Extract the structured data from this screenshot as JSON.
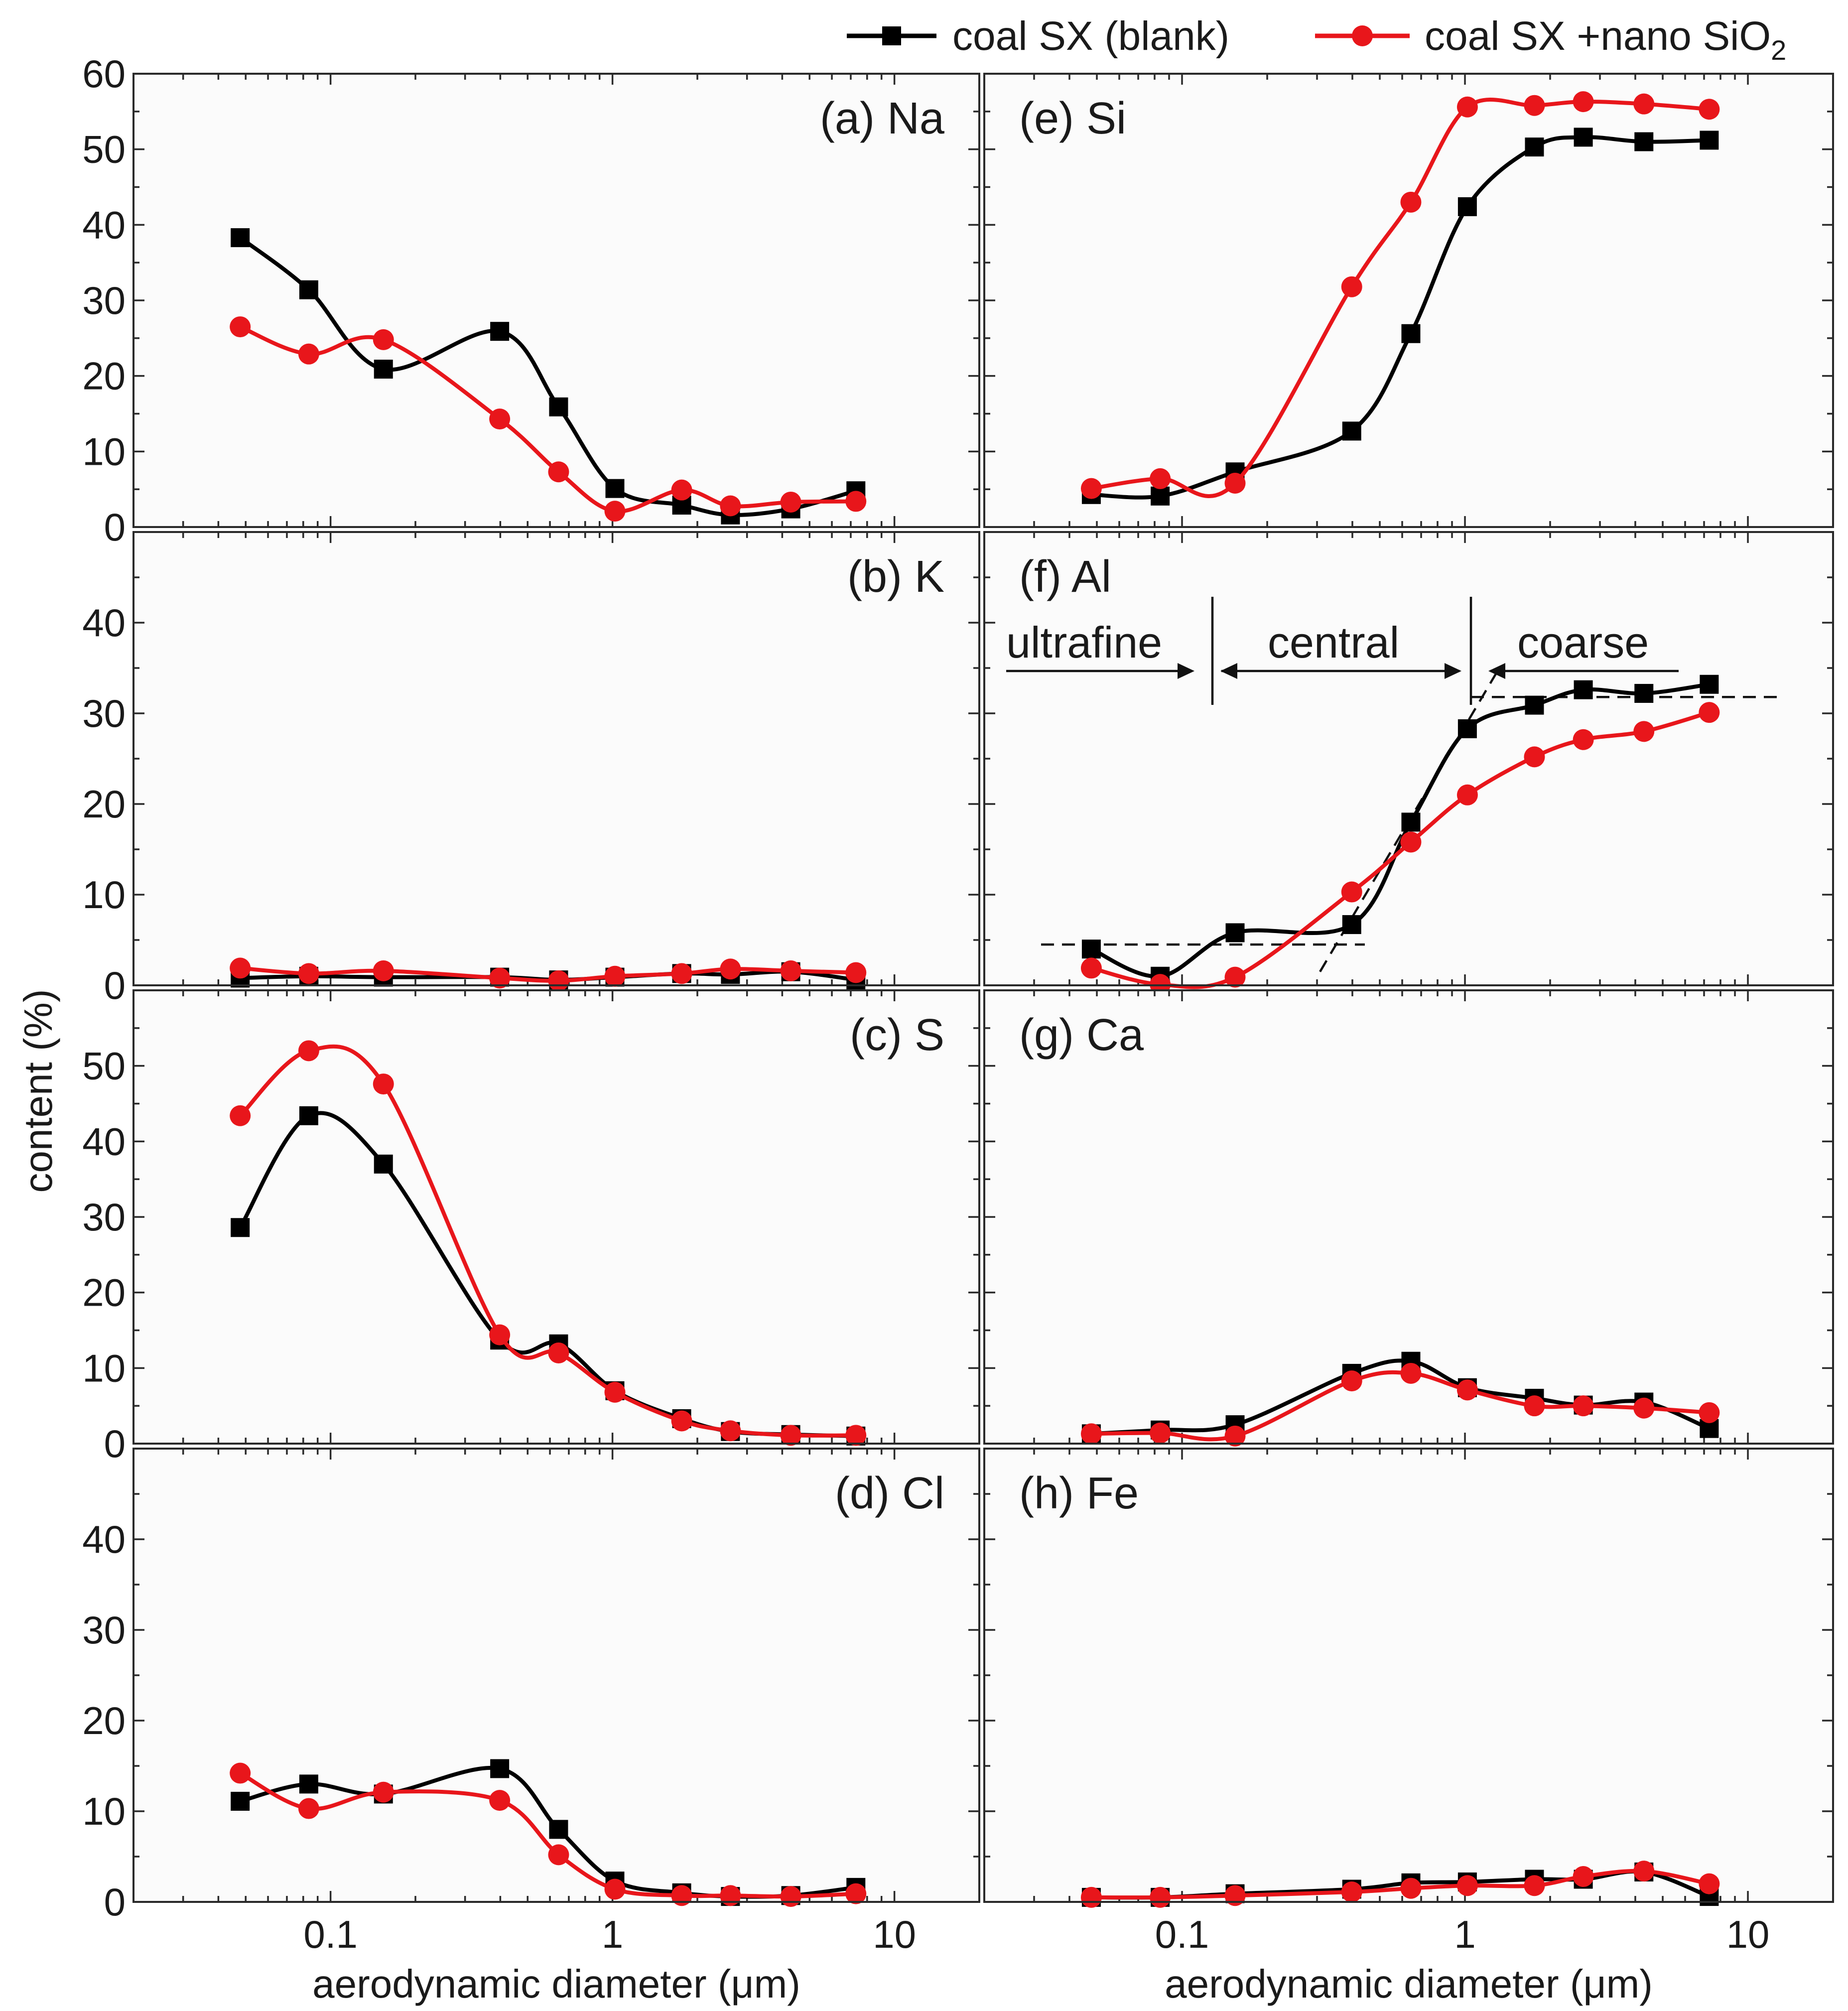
{
  "chart_data": {
    "type": "line",
    "x_scale": "log",
    "xlim": [
      0.02,
      20
    ],
    "x": [
      0.0478,
      0.0837,
      0.154,
      0.398,
      0.644,
      1.02,
      1.76,
      2.62,
      4.29,
      7.3
    ],
    "xlabel": "aerodynamic diameter (μm)",
    "ylabel": "content (%)",
    "x_tick_labels": [
      "0.1",
      "1",
      "10"
    ],
    "legend": {
      "placement": "top-right",
      "entries": [
        {
          "name": "coal SX (blank)",
          "color": "#000000",
          "marker": "square"
        },
        {
          "name_prefix": "coal SX +nano SiO",
          "name_subscript": "2",
          "color": "#e8161b",
          "marker": "circle"
        }
      ]
    },
    "annotations": {
      "regions": [
        "ultrafine",
        "central",
        "coarse"
      ],
      "panel": "(f) Al"
    },
    "panels": [
      {
        "label": "(a) Na",
        "ylim": [
          0,
          60
        ],
        "y_ticks": [
          0,
          10,
          20,
          30,
          40,
          50,
          60
        ],
        "blank": [
          38.3,
          31.4,
          20.9,
          25.9,
          15.9,
          5.1,
          2.9,
          1.6,
          2.4,
          4.8
        ],
        "nano": [
          26.5,
          22.9,
          24.8,
          14.3,
          7.3,
          2.1,
          4.9,
          2.8,
          3.3,
          3.4
        ]
      },
      {
        "label": "(b) K",
        "ylim": [
          0,
          50
        ],
        "y_ticks": [
          0,
          10,
          20,
          30,
          40
        ],
        "blank": [
          0.8,
          1.0,
          0.9,
          0.9,
          0.6,
          0.9,
          1.3,
          1.2,
          1.5,
          0.6
        ],
        "nano": [
          1.9,
          1.3,
          1.6,
          0.8,
          0.5,
          1.0,
          1.3,
          1.8,
          1.6,
          1.4
        ]
      },
      {
        "label": "(c) S",
        "ylim": [
          0,
          60
        ],
        "y_ticks": [
          0,
          10,
          20,
          30,
          40,
          50
        ],
        "blank": [
          28.6,
          43.4,
          37.0,
          13.7,
          13.2,
          7.0,
          3.3,
          1.6,
          1.2,
          1.0
        ],
        "nano": [
          43.4,
          52.0,
          47.6,
          14.4,
          12.0,
          6.8,
          3.0,
          1.7,
          1.1,
          1.1
        ]
      },
      {
        "label": "(d) Cl",
        "ylim": [
          0,
          50
        ],
        "y_ticks": [
          0,
          10,
          20,
          30,
          40
        ],
        "blank": [
          11.1,
          13.0,
          11.9,
          14.7,
          8.0,
          2.3,
          1.0,
          0.6,
          0.7,
          1.6
        ],
        "nano": [
          14.2,
          10.3,
          12.1,
          11.2,
          5.2,
          1.4,
          0.7,
          0.7,
          0.6,
          0.9
        ]
      },
      {
        "label": "(e) Si",
        "ylim": [
          0,
          60
        ],
        "y_ticks": [
          0,
          10,
          20,
          30,
          40,
          50,
          60
        ],
        "blank": [
          4.3,
          4.1,
          7.3,
          12.7,
          25.6,
          42.4,
          50.3,
          51.6,
          51.0,
          51.2
        ],
        "nano": [
          5.1,
          6.4,
          5.8,
          31.8,
          43.0,
          55.6,
          55.8,
          56.3,
          56.0,
          55.3
        ]
      },
      {
        "label": "(f) Al",
        "ylim": [
          0,
          50
        ],
        "y_ticks": [
          0,
          10,
          20,
          30,
          40
        ],
        "blank": [
          4.0,
          1.0,
          5.8,
          6.7,
          18.0,
          28.3,
          30.9,
          32.6,
          32.2,
          33.2
        ],
        "nano": [
          1.9,
          0.1,
          0.9,
          10.3,
          15.8,
          21.0,
          25.2,
          27.1,
          28.0,
          30.1
        ]
      },
      {
        "label": "(g) Ca",
        "ylim": [
          0,
          60
        ],
        "y_ticks": [
          0,
          10,
          20,
          30,
          40,
          50
        ],
        "blank": [
          1.3,
          1.8,
          2.5,
          9.3,
          10.9,
          7.4,
          6.0,
          5.1,
          5.5,
          2.0
        ],
        "nano": [
          1.3,
          1.4,
          1.0,
          8.3,
          9.3,
          7.1,
          5.0,
          5.0,
          4.7,
          4.1
        ]
      },
      {
        "label": "(h) Fe",
        "ylim": [
          0,
          50
        ],
        "y_ticks": [
          0,
          10,
          20,
          30,
          40
        ],
        "blank": [
          0.5,
          0.5,
          0.9,
          1.4,
          2.1,
          2.2,
          2.5,
          2.5,
          3.3,
          0.6
        ],
        "nano": [
          0.5,
          0.5,
          0.7,
          1.1,
          1.5,
          1.8,
          1.8,
          2.8,
          3.4,
          2.0
        ]
      }
    ]
  }
}
